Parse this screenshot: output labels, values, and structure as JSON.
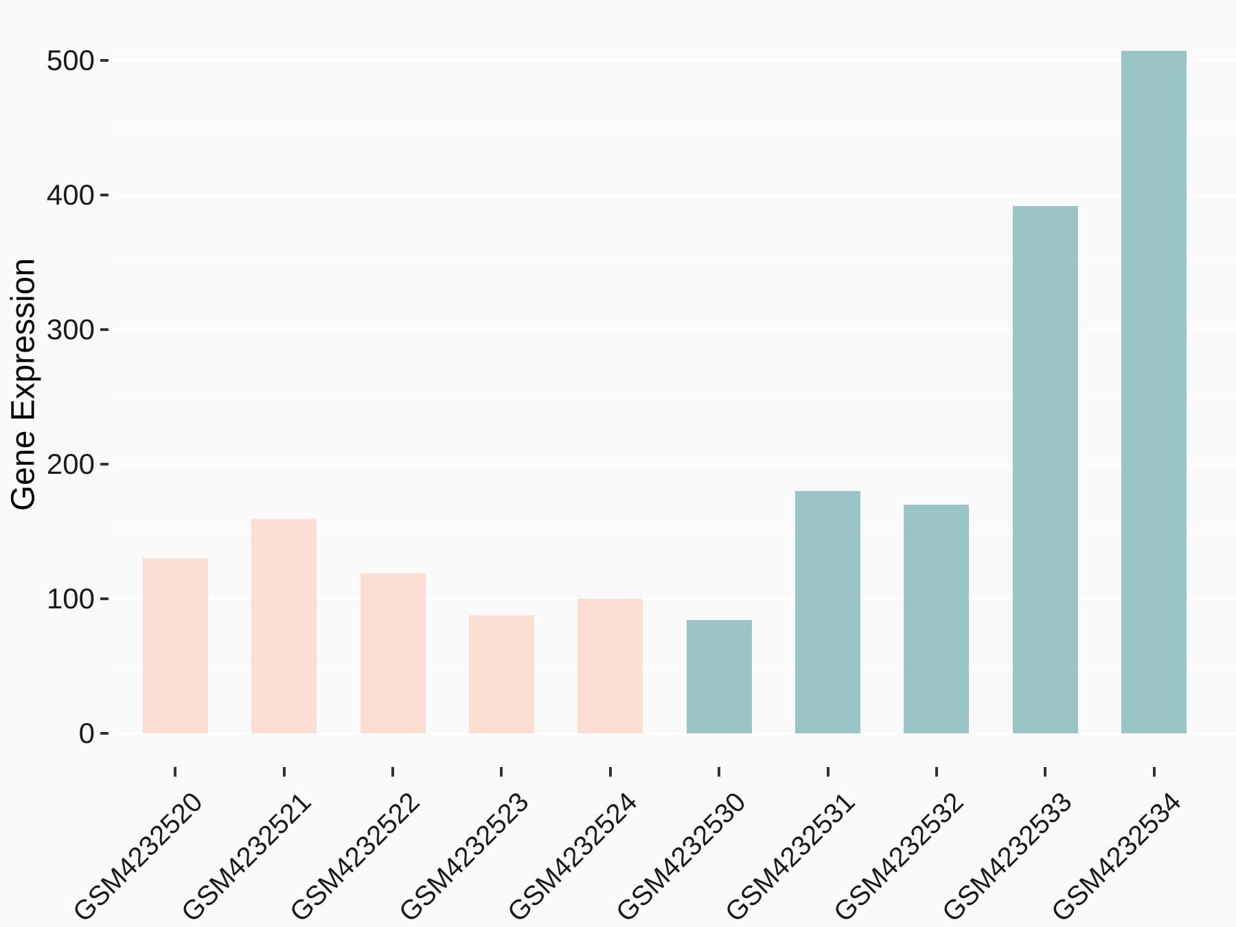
{
  "figure": {
    "background_color": "#FAFAFA",
    "gridline_color": "#FFFFFF",
    "tick_mark_color": "#333333",
    "axis_text_color": "#1A1A1A",
    "title": "",
    "legend": "none"
  },
  "chart_data": {
    "type": "bar",
    "title": "",
    "xlabel": "",
    "ylabel": "Gene Expression",
    "categories": [
      "GSM4232520",
      "GSM4232521",
      "GSM4232522",
      "GSM4232523",
      "GSM4232524",
      "GSM4232530",
      "GSM4232531",
      "GSM4232532",
      "GSM4232533",
      "GSM4232534"
    ],
    "values": [
      130,
      159,
      119,
      88,
      100,
      84,
      180,
      170,
      392,
      507
    ],
    "groups": [
      "group1",
      "group1",
      "group1",
      "group1",
      "group1",
      "group2",
      "group2",
      "group2",
      "group2",
      "group2"
    ],
    "group_colors": {
      "group1": "#FCDED2",
      "group2": "#9BC4C7"
    },
    "y_ticks": [
      0,
      100,
      200,
      300,
      400,
      500
    ],
    "y_minor_gridlines": [
      50,
      150,
      250,
      350,
      450
    ],
    "ylim": [
      0,
      520
    ],
    "grid": "horizontal major and minor, white lines, no vertical grid",
    "x_tick_label_rotation_deg": 45,
    "legend_position": "none"
  }
}
